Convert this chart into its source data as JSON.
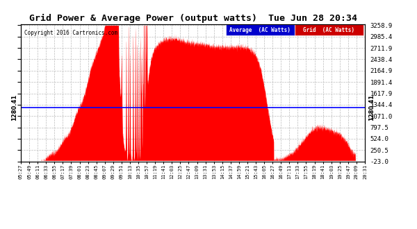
{
  "title": "Grid Power & Average Power (output watts)  Tue Jun 28 20:34",
  "copyright": "Copyright 2016 Cartronics.com",
  "bg_color": "#ffffff",
  "average_value": 1280.41,
  "ymin": -23.0,
  "ymax": 3258.9,
  "ytick_values": [
    -23.0,
    250.5,
    524.0,
    797.5,
    1071.0,
    1344.4,
    1617.9,
    1891.4,
    2164.9,
    2438.4,
    2711.9,
    2985.4,
    3258.9
  ],
  "xtick_labels": [
    "05:27",
    "05:49",
    "06:11",
    "06:33",
    "06:55",
    "07:17",
    "07:39",
    "08:01",
    "08:23",
    "08:45",
    "09:07",
    "09:29",
    "09:51",
    "10:13",
    "10:35",
    "10:57",
    "11:19",
    "11:41",
    "12:03",
    "12:25",
    "12:47",
    "13:09",
    "13:31",
    "13:53",
    "14:15",
    "14:37",
    "14:59",
    "15:21",
    "15:43",
    "16:05",
    "16:27",
    "16:49",
    "17:11",
    "17:33",
    "17:55",
    "18:19",
    "18:41",
    "19:03",
    "19:25",
    "19:47",
    "20:09",
    "20:31"
  ],
  "fill_color": "#ff0000",
  "avg_line_color": "#0000ff",
  "grid_color": "#bbbbbb",
  "legend_avg_bg": "#0000cc",
  "legend_grid_bg": "#cc0000",
  "legend_avg_label": "Average  (AC Watts)",
  "legend_grid_label": "Grid  (AC Watts)"
}
